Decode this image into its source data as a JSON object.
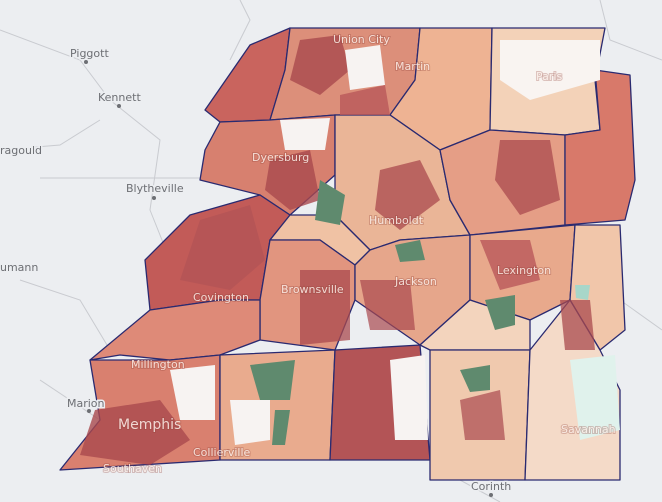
{
  "places": [
    "Piggott",
    "Kennett",
    "ragould",
    "Blytheville",
    "umann",
    "Marion",
    "Union City",
    "Martin",
    "Paris",
    "Dyersburg",
    "Humboldt",
    "Jackson",
    "Lexington",
    "Covington",
    "Brownsville",
    "Millington",
    "Memphis",
    "Collierville",
    "Southaven",
    "Savannah",
    "Corinth"
  ]
}
